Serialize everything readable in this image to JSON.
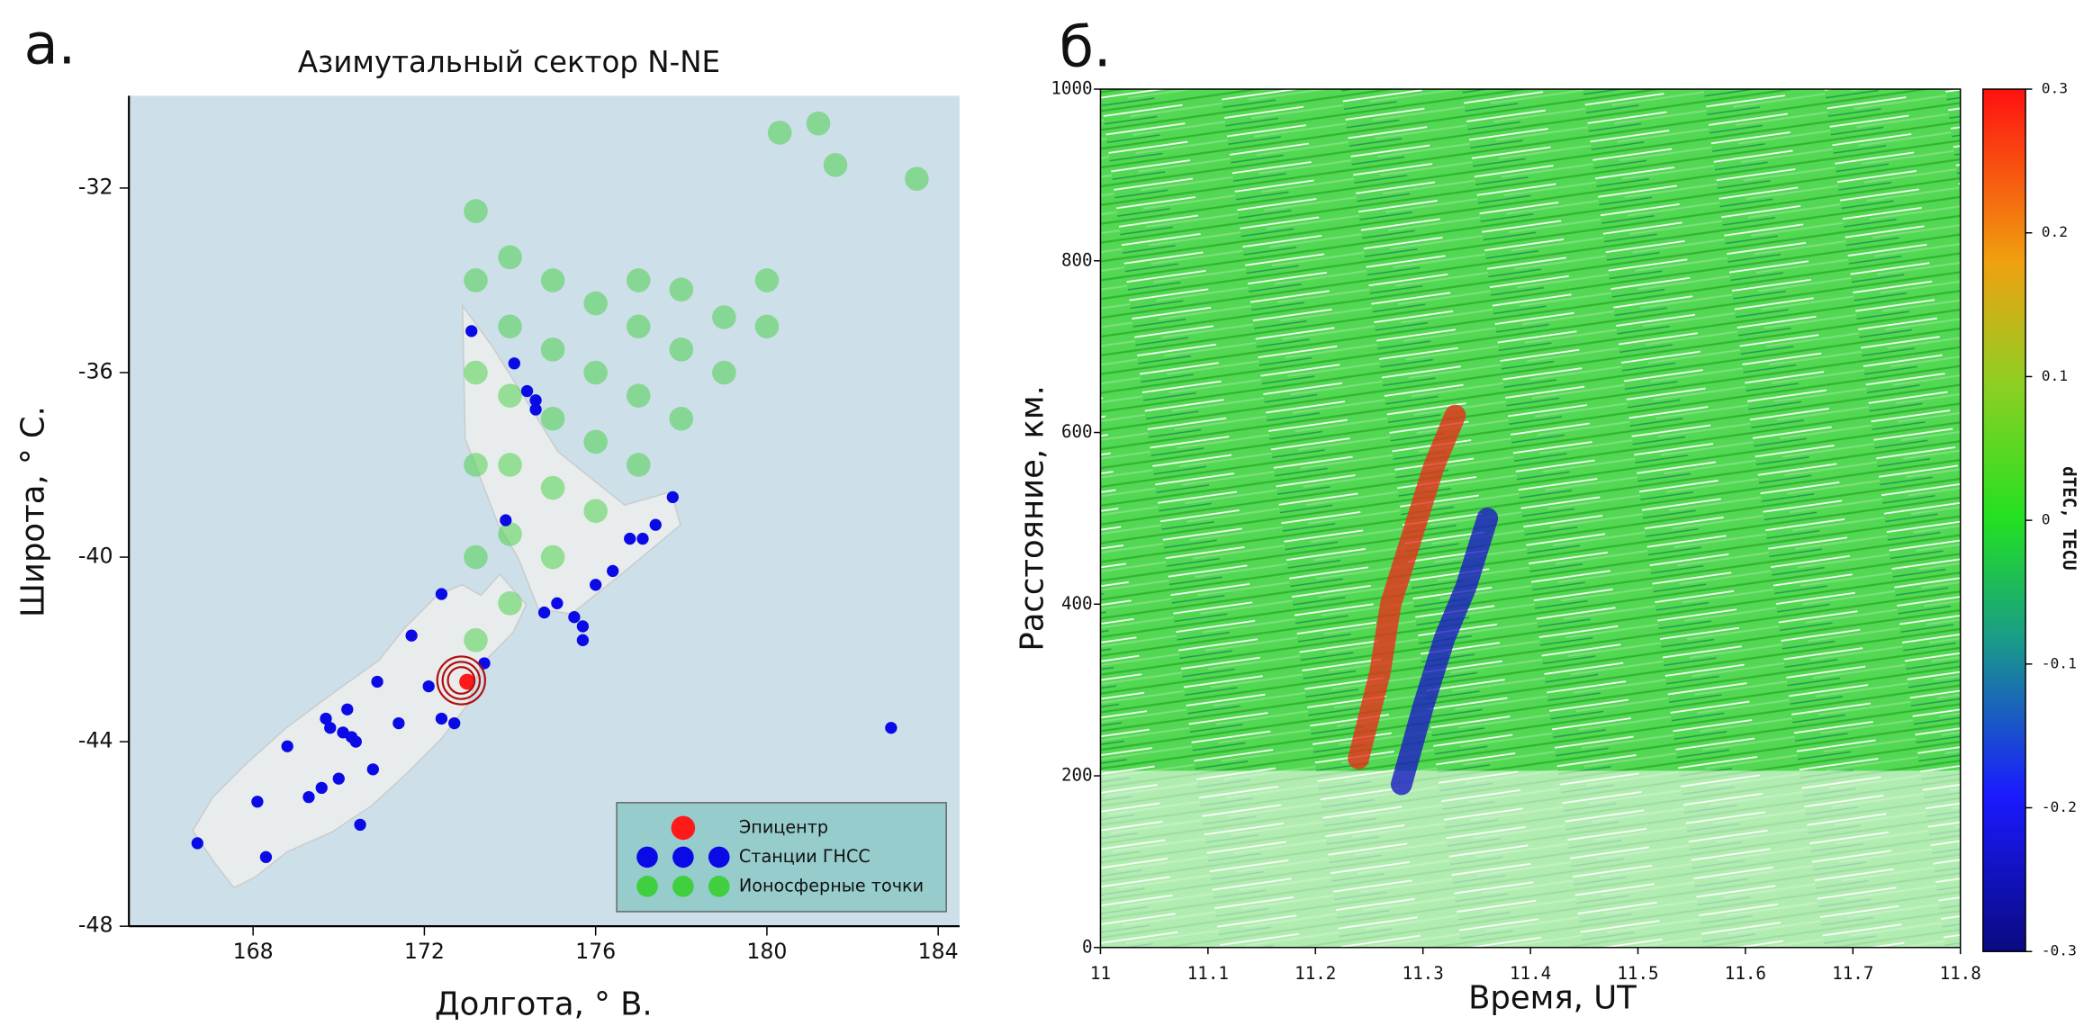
{
  "chart_data": [
    {
      "type": "scatter",
      "panel_label": "а.",
      "title": "Азимутальный сектор N-NE",
      "xlabel": "Долгота, ° В.",
      "ylabel": "Широта, ° С.",
      "xlim": [
        165.1,
        184.5
      ],
      "ylim": [
        -48,
        -30
      ],
      "xticks": [
        168,
        172,
        176,
        180,
        184
      ],
      "yticks": [
        -32,
        -36,
        -40,
        -44,
        -48
      ],
      "legend": "lower right",
      "series": [
        {
          "name": "Ионосферные точки",
          "color": "#3fcf3f",
          "x": [
            173.2,
            173.2,
            173.2,
            173.2,
            173.2,
            173.2,
            174,
            174,
            174,
            174,
            174,
            174,
            175,
            175,
            175,
            175,
            175,
            176,
            176,
            176,
            176,
            177,
            177,
            177,
            177,
            178,
            178,
            178,
            179,
            179,
            180,
            180,
            181.2,
            181.6,
            183.5,
            180.3
          ],
          "values": [
            -41.8,
            -40,
            -38,
            -36,
            -34,
            -32.5,
            -41,
            -39.5,
            -38,
            -36.5,
            -35,
            -33.5,
            -40,
            -38.5,
            -37,
            -35.5,
            -34,
            -39,
            -37.5,
            -36,
            -34.5,
            -38,
            -36.5,
            -35,
            -34,
            -37,
            -35.5,
            -34.2,
            -36,
            -34.8,
            -35,
            -34,
            -30.6,
            -31.5,
            -31.8,
            -30.8
          ]
        },
        {
          "name": "Станции ГНСС",
          "color": "#0a0ae6",
          "x": [
            166.7,
            168.1,
            168.3,
            168.8,
            169.3,
            169.6,
            169.7,
            169.8,
            170.1,
            170.3,
            170.2,
            170.4,
            170.5,
            170.0,
            170.8,
            170.9,
            171.4,
            171.7,
            172.1,
            172.4,
            172.4,
            172.7,
            173.1,
            174.1,
            174.4,
            174.6,
            174.6,
            173.9,
            174.8,
            175.1,
            175.7,
            175.5,
            176.0,
            176.4,
            176.8,
            177.1,
            177.4,
            177.8,
            182.9,
            173.4,
            175.7
          ],
          "values": [
            -46.2,
            -45.3,
            -46.5,
            -44.1,
            -45.2,
            -45.0,
            -43.5,
            -43.7,
            -43.8,
            -43.9,
            -43.3,
            -44.0,
            -45.8,
            -44.8,
            -44.6,
            -42.7,
            -43.6,
            -41.7,
            -42.8,
            -40.8,
            -43.5,
            -43.6,
            -35.1,
            -35.8,
            -36.4,
            -36.6,
            -36.8,
            -39.2,
            -41.2,
            -41.0,
            -41.5,
            -41.3,
            -40.6,
            -40.3,
            -39.6,
            -39.6,
            -39.3,
            -38.7,
            -43.7,
            -42.3,
            -41.8
          ]
        },
        {
          "name": "Эпицентр",
          "color": "#ff1a1a",
          "x": [
            173.0
          ],
          "values": [
            -42.7
          ]
        }
      ]
    },
    {
      "type": "line",
      "panel_label": "б.",
      "xlabel": "Время, UT",
      "ylabel": "Расстояние, км.",
      "xlim": [
        11,
        11.8
      ],
      "ylim": [
        0,
        1000
      ],
      "xticks": [
        11,
        11.1,
        11.2,
        11.3,
        11.4,
        11.5,
        11.6,
        11.7,
        11.8
      ],
      "yticks": [
        0,
        200,
        400,
        600,
        800,
        1000
      ],
      "colorbar_label": "dTEC, TECU",
      "zlim": [
        -0.3,
        0.3
      ],
      "zticks": [
        -0.3,
        -0.2,
        -0.1,
        0,
        0.1,
        0.2,
        0.3
      ],
      "series": [
        {
          "color": "#e8301c",
          "x": [
            11.24,
            11.26,
            11.27,
            11.29,
            11.31,
            11.33
          ],
          "values": [
            220,
            320,
            400,
            480,
            560,
            620
          ]
        },
        {
          "color": "#1c1cc4",
          "x": [
            11.28,
            11.3,
            11.32,
            11.34,
            11.36
          ],
          "values": [
            190,
            280,
            360,
            420,
            500
          ]
        }
      ]
    }
  ]
}
